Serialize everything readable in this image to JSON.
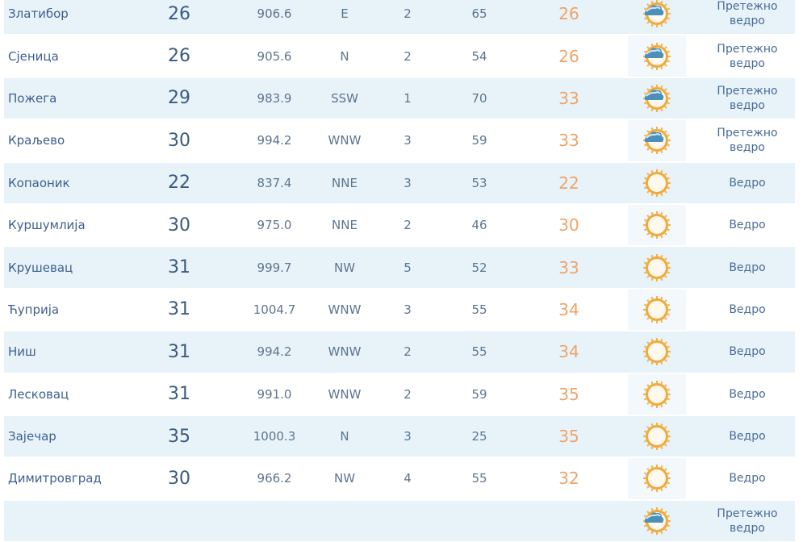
{
  "colors": {
    "row_alt": "#e7f3f8",
    "name": "#3f6090",
    "feels_like": "#f0a366",
    "sun": "#f2a93b",
    "cloud": "#4b90b8"
  },
  "rows": [
    {
      "station": "Златибор",
      "temp": "26",
      "pressure": "906.6",
      "wind_dir": "E",
      "wind_speed": "2",
      "humidity": "65",
      "feels_like": "26",
      "icon": "partly-cloudy-icon",
      "description": "Претежно ведро"
    },
    {
      "station": "Сјеница",
      "temp": "26",
      "pressure": "905.6",
      "wind_dir": "N",
      "wind_speed": "2",
      "humidity": "54",
      "feels_like": "26",
      "icon": "partly-cloudy-icon",
      "description": "Претежно ведро"
    },
    {
      "station": "Пожега",
      "temp": "29",
      "pressure": "983.9",
      "wind_dir": "SSW",
      "wind_speed": "1",
      "humidity": "70",
      "feels_like": "33",
      "icon": "partly-cloudy-icon",
      "description": "Претежно ведро"
    },
    {
      "station": "Краљево",
      "temp": "30",
      "pressure": "994.2",
      "wind_dir": "WNW",
      "wind_speed": "3",
      "humidity": "59",
      "feels_like": "33",
      "icon": "partly-cloudy-icon",
      "description": "Претежно ведро"
    },
    {
      "station": "Копаоник",
      "temp": "22",
      "pressure": "837.4",
      "wind_dir": "NNE",
      "wind_speed": "3",
      "humidity": "53",
      "feels_like": "22",
      "icon": "sun-icon",
      "description": "Ведро"
    },
    {
      "station": "Куршумлија",
      "temp": "30",
      "pressure": "975.0",
      "wind_dir": "NNE",
      "wind_speed": "2",
      "humidity": "46",
      "feels_like": "30",
      "icon": "sun-icon",
      "description": "Ведро"
    },
    {
      "station": "Крушевац",
      "temp": "31",
      "pressure": "999.7",
      "wind_dir": "NW",
      "wind_speed": "5",
      "humidity": "52",
      "feels_like": "33",
      "icon": "sun-icon",
      "description": "Ведро"
    },
    {
      "station": "Ћуприја",
      "temp": "31",
      "pressure": "1004.7",
      "wind_dir": "WNW",
      "wind_speed": "3",
      "humidity": "55",
      "feels_like": "34",
      "icon": "sun-icon",
      "description": "Ведро"
    },
    {
      "station": "Ниш",
      "temp": "31",
      "pressure": "994.2",
      "wind_dir": "WNW",
      "wind_speed": "2",
      "humidity": "55",
      "feels_like": "34",
      "icon": "sun-icon",
      "description": "Ведро"
    },
    {
      "station": "Лесковац",
      "temp": "31",
      "pressure": "991.0",
      "wind_dir": "WNW",
      "wind_speed": "2",
      "humidity": "59",
      "feels_like": "35",
      "icon": "sun-icon",
      "description": "Ведро"
    },
    {
      "station": "Зајечар",
      "temp": "35",
      "pressure": "1000.3",
      "wind_dir": "N",
      "wind_speed": "3",
      "humidity": "25",
      "feels_like": "35",
      "icon": "sun-icon",
      "description": "Ведро"
    },
    {
      "station": "Димитровград",
      "temp": "30",
      "pressure": "966.2",
      "wind_dir": "NW",
      "wind_speed": "4",
      "humidity": "55",
      "feels_like": "32",
      "icon": "sun-icon",
      "description": "Ведро"
    },
    {
      "station": "",
      "temp": "",
      "pressure": "",
      "wind_dir": "",
      "wind_speed": "",
      "humidity": "",
      "feels_like": "",
      "icon": "partly-cloudy-icon",
      "description": "Претежно ведро"
    }
  ]
}
